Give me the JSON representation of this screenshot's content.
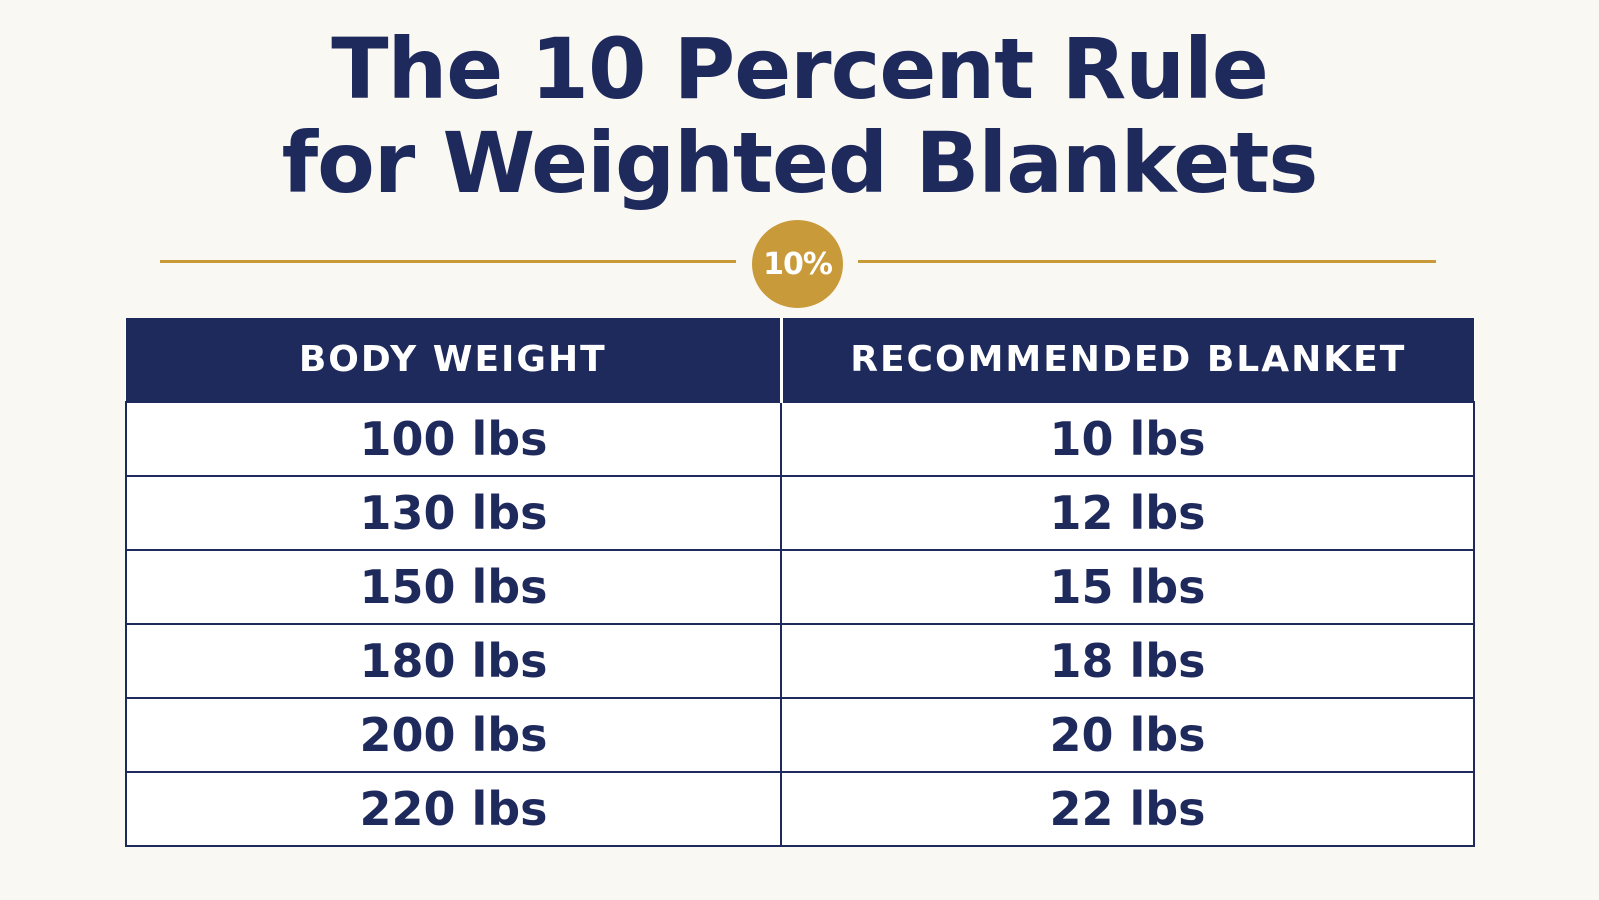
{
  "title": {
    "line1": "The 10 Percent Rule",
    "line2": "for Weighted Blankets"
  },
  "badge": "10%",
  "colors": {
    "navy": "#1f2a5c",
    "gold": "#c99a3a",
    "background": "#faf8f2"
  },
  "table": {
    "headers": [
      "BODY WEIGHT",
      "RECOMMENDED BLANKET"
    ],
    "rows": [
      [
        "100 lbs",
        "10 lbs"
      ],
      [
        "130 lbs",
        "12 lbs"
      ],
      [
        "150 lbs",
        "15 lbs"
      ],
      [
        "180 lbs",
        "18 lbs"
      ],
      [
        "200 lbs",
        "20 lbs"
      ],
      [
        "220 lbs",
        "22 lbs"
      ]
    ]
  }
}
